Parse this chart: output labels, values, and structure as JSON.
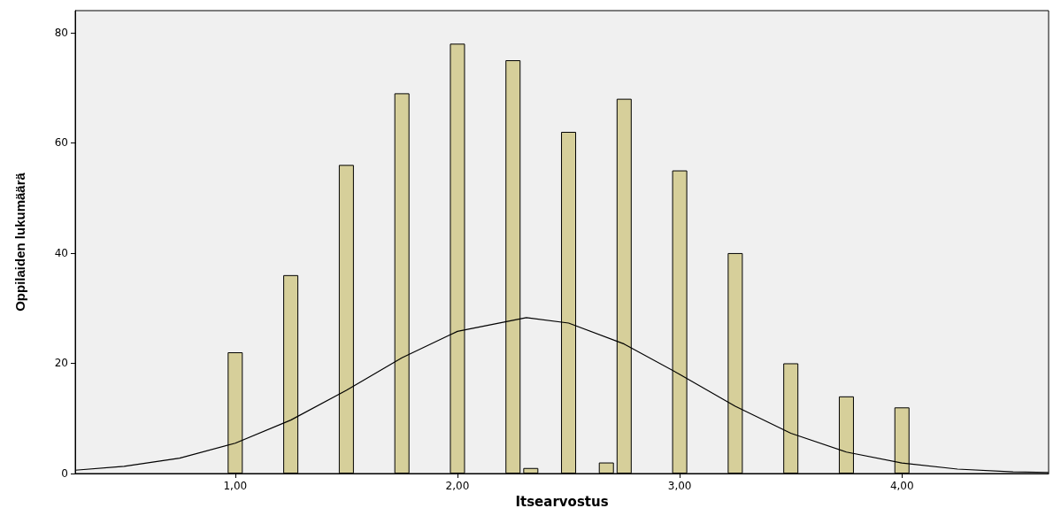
{
  "chart_data": {
    "type": "bar",
    "xlabel": "Itsearvostus",
    "ylabel": "Oppilaiden lukumäärä",
    "xlim": [
      0.28,
      4.66
    ],
    "xticks": [
      {
        "value": 1,
        "label": "1,00"
      },
      {
        "value": 2,
        "label": "2,00"
      },
      {
        "value": 3,
        "label": "3,00"
      },
      {
        "value": 4,
        "label": "4,00"
      }
    ],
    "ylim": [
      0,
      84
    ],
    "yticks": [
      0,
      20,
      40,
      60,
      80
    ],
    "grid": false,
    "series": [
      {
        "color": "#d6cf9a",
        "x": [
          1,
          1.25,
          1.5,
          1.75,
          2,
          2.25,
          2.33,
          2.5,
          2.67,
          2.75,
          3,
          3.25,
          3.5,
          3.75,
          4
        ],
        "values": [
          22,
          36,
          56,
          69,
          78,
          75,
          1,
          62,
          2,
          68,
          55,
          40,
          20,
          14,
          12
        ]
      },
      {
        "type": "line",
        "color": "#000000",
        "marker": "none",
        "line_style": "solid",
        "x": [
          0.28,
          0.5,
          0.75,
          1,
          1.25,
          1.5,
          1.75,
          2,
          2.31,
          2.5,
          2.75,
          3,
          3.25,
          3.5,
          3.75,
          4,
          4.25,
          4.5,
          4.66
        ],
        "values": [
          0.6,
          1.3,
          2.8,
          5.5,
          9.7,
          15.1,
          21,
          25.8,
          28.3,
          27.3,
          23.5,
          18,
          12.2,
          7.3,
          3.9,
          1.9,
          0.8,
          0.3,
          0.2
        ]
      }
    ]
  }
}
